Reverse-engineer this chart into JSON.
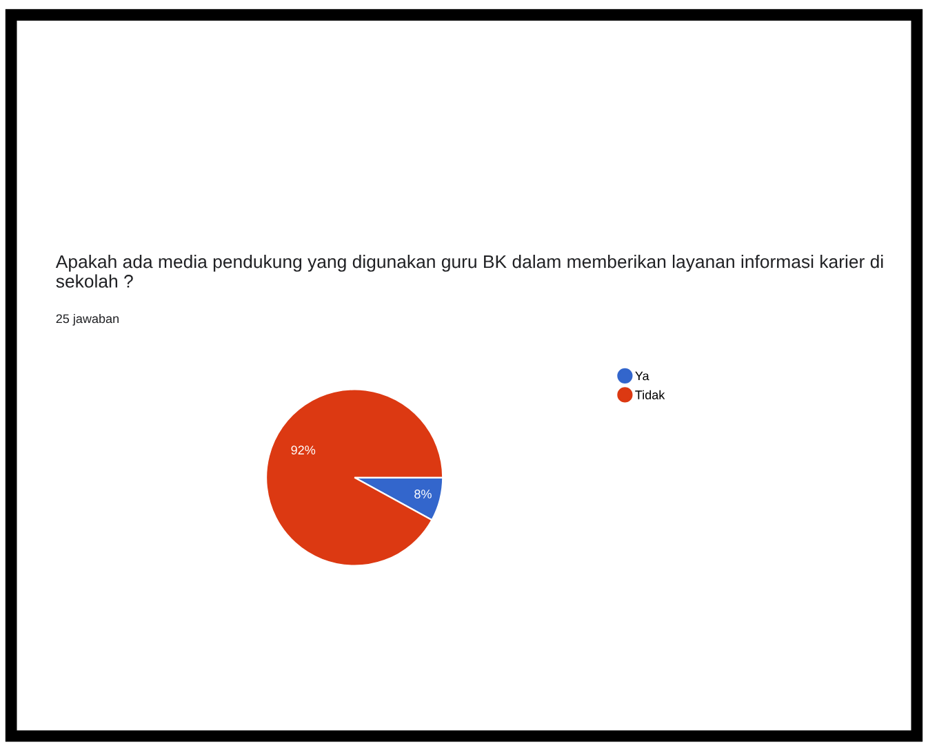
{
  "chart_data": {
    "type": "pie",
    "title": "Apakah ada media pendukung yang digunakan guru BK dalam memberikan layanan informasi karier di sekolah ?",
    "subtitle": "25 jawaban",
    "categories": [
      "Ya",
      "Tidak"
    ],
    "values": [
      8,
      92
    ],
    "colors": [
      "#3366cc",
      "#dc3912"
    ],
    "value_labels": [
      "8%",
      "92%"
    ],
    "legend": "top right"
  }
}
